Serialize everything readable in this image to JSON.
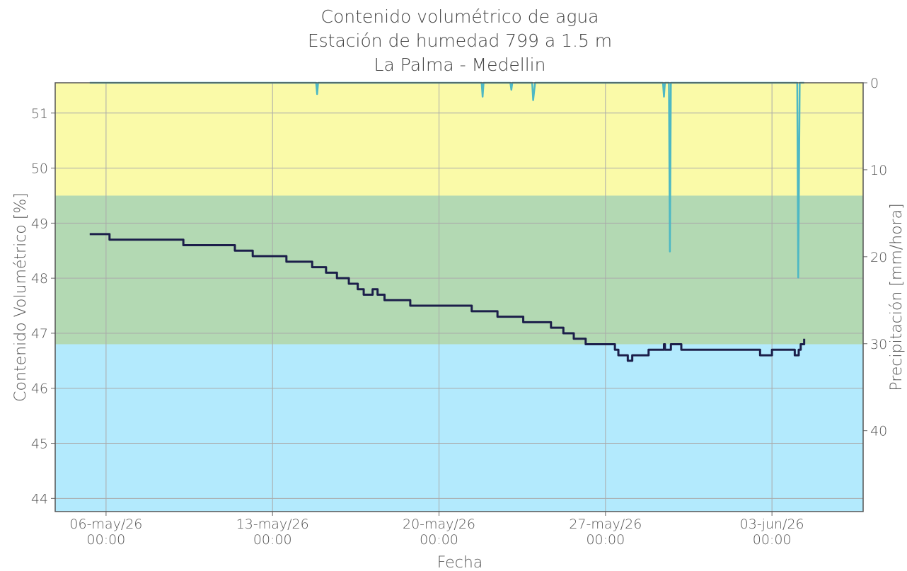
{
  "chart_data": {
    "type": "line",
    "title": [
      "Contenido volumétrico de agua",
      "Estación de humedad 799 a 1.5 m",
      "La Palma - Medellin"
    ],
    "xlabel": "Fecha",
    "ylabel": "Contenido Volumétrico [%]",
    "y2label": "Precipitación [mm/hora]",
    "xlim": [
      "2026-05-03T20:40",
      "2026-06-06T20:00"
    ],
    "xticks": [
      {
        "value": "2026-05-06T00:00",
        "label": "06-may/26\n00:00"
      },
      {
        "value": "2026-05-13T00:00",
        "label": "13-may/26\n00:00"
      },
      {
        "value": "2026-05-20T00:00",
        "label": "20-may/26\n00:00"
      },
      {
        "value": "2026-05-27T00:00",
        "label": "27-may/26\n00:00"
      },
      {
        "value": "2026-06-03T00:00",
        "label": "03-jun/26\n00:00"
      }
    ],
    "ylim": [
      43.76,
      51.55
    ],
    "yticks": [
      44,
      45,
      46,
      47,
      48,
      49,
      50,
      51
    ],
    "y2lim": [
      0,
      49.3
    ],
    "y2ticks": [
      0,
      10,
      20,
      30,
      40
    ],
    "y2_inverted": true,
    "grid": true,
    "bands": [
      {
        "min": 49.5,
        "color": "#fafaa8"
      },
      {
        "min": 46.8,
        "max": 49.5,
        "color": "#b3d9b3"
      },
      {
        "max": 46.8,
        "color": "#b3eafd"
      }
    ],
    "series": [
      {
        "name": "Contenido volumétrico",
        "color": "#1c1f4a",
        "step": "post",
        "x": [
          "2026-05-05T07:30",
          "2026-05-06T03:30",
          "2026-05-09T06:00",
          "2026-05-11T10:00",
          "2026-05-12T04:00",
          "2026-05-13T14:00",
          "2026-05-14T16:00",
          "2026-05-15T06:00",
          "2026-05-15T17:00",
          "2026-05-16T05:00",
          "2026-05-16T14:00",
          "2026-05-16T20:00",
          "2026-05-17T05:00",
          "2026-05-17T10:00",
          "2026-05-17T17:00",
          "2026-05-18T19:00",
          "2026-05-21T09:00",
          "2026-05-22T11:00",
          "2026-05-23T13:00",
          "2026-05-24T17:00",
          "2026-05-25T05:30",
          "2026-05-25T16:00",
          "2026-05-26T04:00",
          "2026-05-27T09:30",
          "2026-05-27T13:00",
          "2026-05-27T22:30",
          "2026-05-28T03:00",
          "2026-05-28T19:30",
          "2026-05-29T11:00",
          "2026-05-29T12:00",
          "2026-05-29T18:00",
          "2026-05-30T04:30",
          "2026-06-02T12:00",
          "2026-06-03T00:00",
          "2026-06-03T23:00",
          "2026-06-04T03:00",
          "2026-06-04T05:00",
          "2026-06-04T08:30"
        ],
        "values": [
          48.8,
          48.7,
          48.6,
          48.5,
          48.4,
          48.3,
          48.2,
          48.1,
          48.0,
          47.9,
          47.8,
          47.7,
          47.8,
          47.7,
          47.6,
          47.5,
          47.4,
          47.3,
          47.2,
          47.1,
          47.0,
          46.9,
          46.8,
          46.7,
          46.6,
          46.5,
          46.6,
          46.7,
          46.8,
          46.7,
          46.8,
          46.7,
          46.6,
          46.7,
          46.6,
          46.7,
          46.8,
          46.9
        ]
      },
      {
        "name": "Precipitación",
        "color": "#4db8c4",
        "axis": "y2",
        "x": [
          "2026-05-05T07:30",
          "2026-05-14T20:00",
          "2026-05-14T21:00",
          "2026-05-14T22:00",
          "2026-05-21T19:00",
          "2026-05-21T20:00",
          "2026-05-21T21:00",
          "2026-05-23T00:00",
          "2026-05-23T01:00",
          "2026-05-23T02:00",
          "2026-05-23T22:00",
          "2026-05-23T23:00",
          "2026-05-24T01:00",
          "2026-05-29T10:00",
          "2026-05-29T11:00",
          "2026-05-29T12:00",
          "2026-05-29T16:00",
          "2026-05-29T17:00",
          "2026-05-29T18:00",
          "2026-06-04T01:30",
          "2026-06-04T02:30",
          "2026-06-04T04:00",
          "2026-06-04T08:30"
        ],
        "values": [
          0,
          0,
          1.3,
          0,
          0,
          1.6,
          0,
          0,
          0.8,
          0,
          0,
          2.0,
          0,
          0,
          1.6,
          0,
          0,
          19.4,
          0,
          0,
          22.4,
          0,
          0
        ]
      }
    ]
  }
}
